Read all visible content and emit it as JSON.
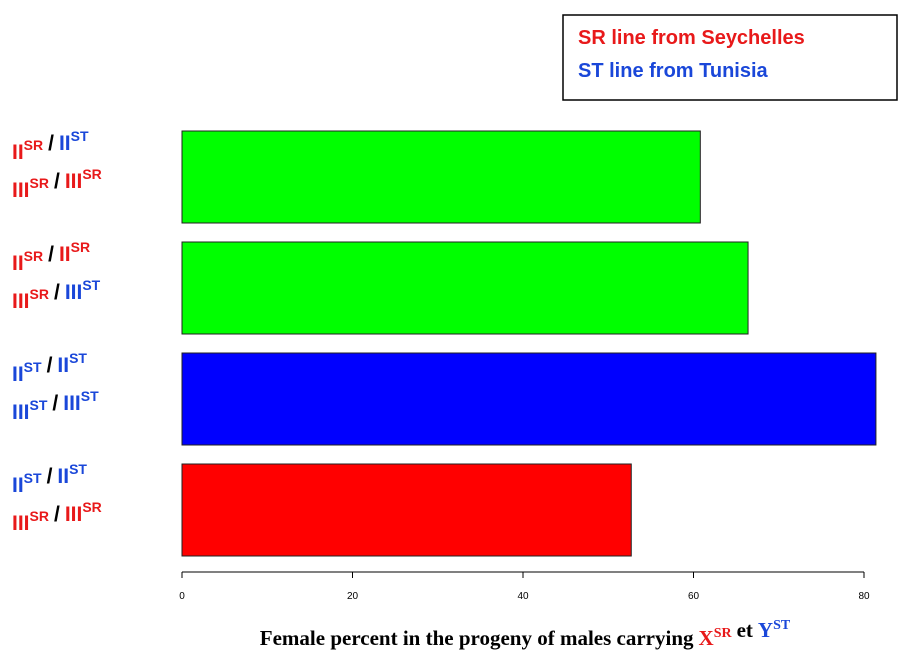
{
  "chart_data": {
    "type": "bar",
    "orientation": "horizontal",
    "values": [
      60.8,
      66.4,
      81.4,
      52.7
    ],
    "colors": [
      "#00ff00",
      "#00ff00",
      "#0000ff",
      "#ff0000"
    ],
    "xlim": [
      0,
      80
    ],
    "xticks": [
      0,
      20,
      40,
      60,
      80
    ],
    "separator": "/",
    "labels": [
      [
        [
          {
            "chromosome": "II",
            "allele": "SR",
            "color": "#e8191a"
          },
          {
            "chromosome": "II",
            "allele": "ST",
            "color": "#1a47d9"
          }
        ],
        [
          {
            "chromosome": "III",
            "allele": "SR",
            "color": "#e8191a"
          },
          {
            "chromosome": "III",
            "allele": "SR",
            "color": "#e8191a"
          }
        ]
      ],
      [
        [
          {
            "chromosome": "II",
            "allele": "SR",
            "color": "#e8191a"
          },
          {
            "chromosome": "II",
            "allele": "SR",
            "color": "#e8191a"
          }
        ],
        [
          {
            "chromosome": "III",
            "allele": "SR",
            "color": "#e8191a"
          },
          {
            "chromosome": "III",
            "allele": "ST",
            "color": "#1a47d9"
          }
        ]
      ],
      [
        [
          {
            "chromosome": "II",
            "allele": "ST",
            "color": "#1a47d9"
          },
          {
            "chromosome": "II",
            "allele": "ST",
            "color": "#1a47d9"
          }
        ],
        [
          {
            "chromosome": "III",
            "allele": "ST",
            "color": "#1a47d9"
          },
          {
            "chromosome": "III",
            "allele": "ST",
            "color": "#1a47d9"
          }
        ]
      ],
      [
        [
          {
            "chromosome": "II",
            "allele": "ST",
            "color": "#1a47d9"
          },
          {
            "chromosome": "II",
            "allele": "ST",
            "color": "#1a47d9"
          }
        ],
        [
          {
            "chromosome": "III",
            "allele": "SR",
            "color": "#e8191a"
          },
          {
            "chromosome": "III",
            "allele": "SR",
            "color": "#e8191a"
          }
        ]
      ]
    ],
    "legend": [
      {
        "label": "SR line from Seychelles",
        "color": "#e8191a"
      },
      {
        "label": "ST line from Tunisia",
        "color": "#1a47d9"
      }
    ],
    "xlabel": {
      "prefix": "Female percent in the progeny of males carrying",
      "first": {
        "base": "X",
        "sup": "SR",
        "color": "#e8191a"
      },
      "joiner": "et",
      "second": {
        "base": "Y",
        "sup": "ST",
        "color": "#1a47d9"
      }
    }
  }
}
